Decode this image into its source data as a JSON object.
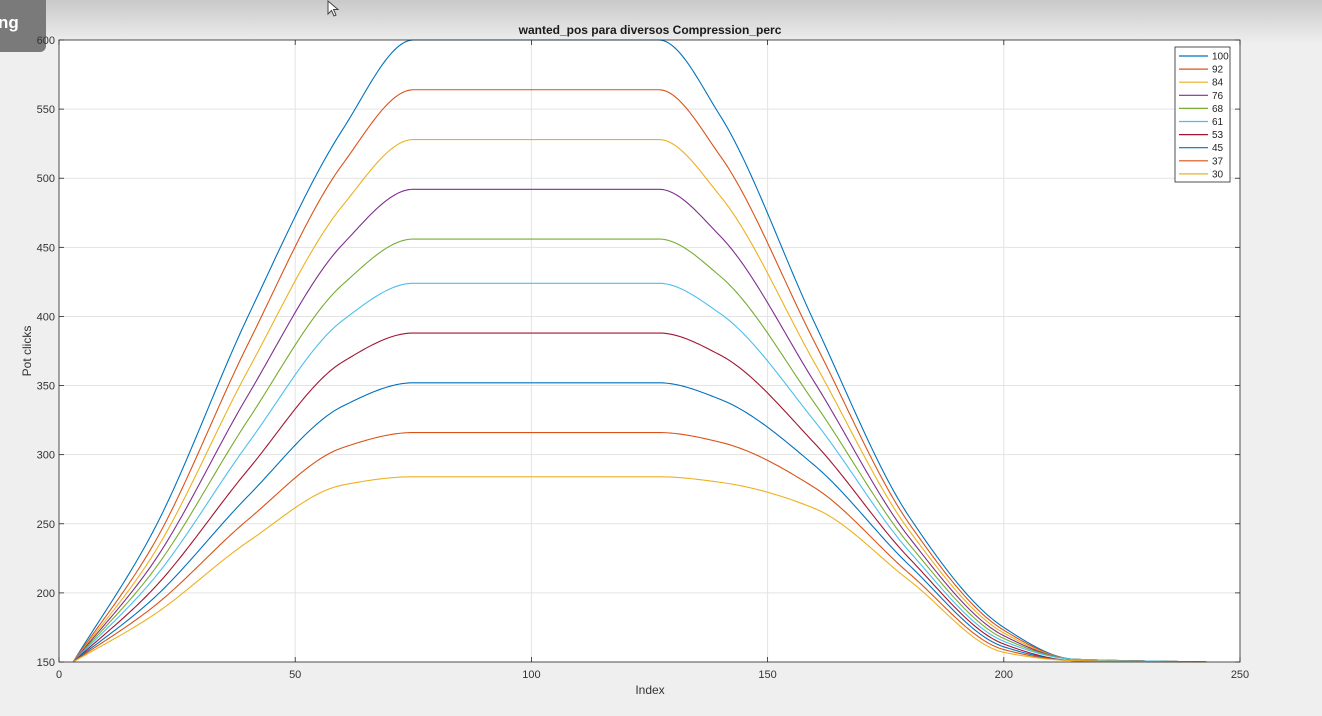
{
  "window": {
    "corner_tab_label": "ng"
  },
  "chart_data": {
    "type": "line",
    "title": "wanted_pos para diversos Compression_perc",
    "xlabel": "Index",
    "ylabel": "Pot clicks",
    "xlim": [
      0,
      250
    ],
    "ylim": [
      150,
      600
    ],
    "xticks": [
      0,
      50,
      100,
      150,
      200,
      250
    ],
    "yticks": [
      150,
      200,
      250,
      300,
      350,
      400,
      450,
      500,
      550,
      600
    ],
    "grid": true,
    "legend_position": "top-right",
    "series": [
      {
        "name": "100",
        "color": "#0072BD",
        "x": [
          3,
          20,
          40,
          60,
          75,
          127,
          140,
          160,
          180,
          200,
          215,
          243
        ],
        "y": [
          150,
          245,
          400,
          535,
          600,
          600,
          545,
          395,
          255,
          175,
          152,
          150
        ]
      },
      {
        "name": "92",
        "color": "#D95319",
        "x": [
          3,
          20,
          40,
          60,
          75,
          127,
          140,
          160,
          180,
          200,
          215,
          243
        ],
        "y": [
          150,
          235,
          380,
          510,
          564,
          564,
          516,
          381,
          250,
          173,
          152,
          150
        ]
      },
      {
        "name": "84",
        "color": "#EDB120",
        "x": [
          3,
          20,
          40,
          60,
          75,
          127,
          140,
          160,
          180,
          200,
          215,
          243
        ],
        "y": [
          150,
          228,
          361,
          480,
          528,
          528,
          487,
          366,
          245,
          171,
          152,
          150
        ]
      },
      {
        "name": "76",
        "color": "#7E2F8E",
        "x": [
          3,
          20,
          40,
          60,
          75,
          127,
          140,
          160,
          180,
          200,
          215,
          243
        ],
        "y": [
          150,
          222,
          343,
          452,
          492,
          492,
          458,
          352,
          240,
          169,
          152,
          150
        ]
      },
      {
        "name": "68",
        "color": "#77AC30",
        "x": [
          3,
          20,
          40,
          60,
          75,
          127,
          140,
          160,
          180,
          200,
          215,
          243
        ],
        "y": [
          150,
          216,
          325,
          423,
          456,
          456,
          429,
          337,
          235,
          167,
          152,
          150
        ]
      },
      {
        "name": "61",
        "color": "#4DBEEE",
        "x": [
          3,
          20,
          40,
          60,
          75,
          127,
          140,
          160,
          180,
          200,
          215,
          243
        ],
        "y": [
          150,
          210,
          308,
          397,
          424,
          424,
          402,
          324,
          230,
          165,
          152,
          150
        ]
      },
      {
        "name": "53",
        "color": "#A2142F",
        "x": [
          3,
          20,
          40,
          60,
          75,
          127,
          140,
          160,
          180,
          200,
          215,
          243
        ],
        "y": [
          150,
          203,
          289,
          367,
          388,
          388,
          372,
          308,
          225,
          163,
          151,
          150
        ]
      },
      {
        "name": "45",
        "color": "#0072BD",
        "x": [
          3,
          20,
          40,
          60,
          75,
          127,
          140,
          160,
          180,
          200,
          215,
          243
        ],
        "y": [
          150,
          196,
          270,
          335,
          352,
          352,
          340,
          292,
          220,
          161,
          151,
          150
        ]
      },
      {
        "name": "37",
        "color": "#D95319",
        "x": [
          3,
          20,
          40,
          60,
          75,
          127,
          140,
          160,
          180,
          200,
          215,
          243
        ],
        "y": [
          150,
          190,
          253,
          305,
          316,
          316,
          309,
          276,
          214,
          159,
          151,
          150
        ]
      },
      {
        "name": "30",
        "color": "#EDB120",
        "x": [
          3,
          20,
          40,
          60,
          75,
          127,
          140,
          160,
          180,
          200,
          215,
          243
        ],
        "y": [
          150,
          184,
          237,
          278,
          284,
          284,
          280,
          261,
          209,
          157,
          151,
          150
        ]
      }
    ]
  }
}
